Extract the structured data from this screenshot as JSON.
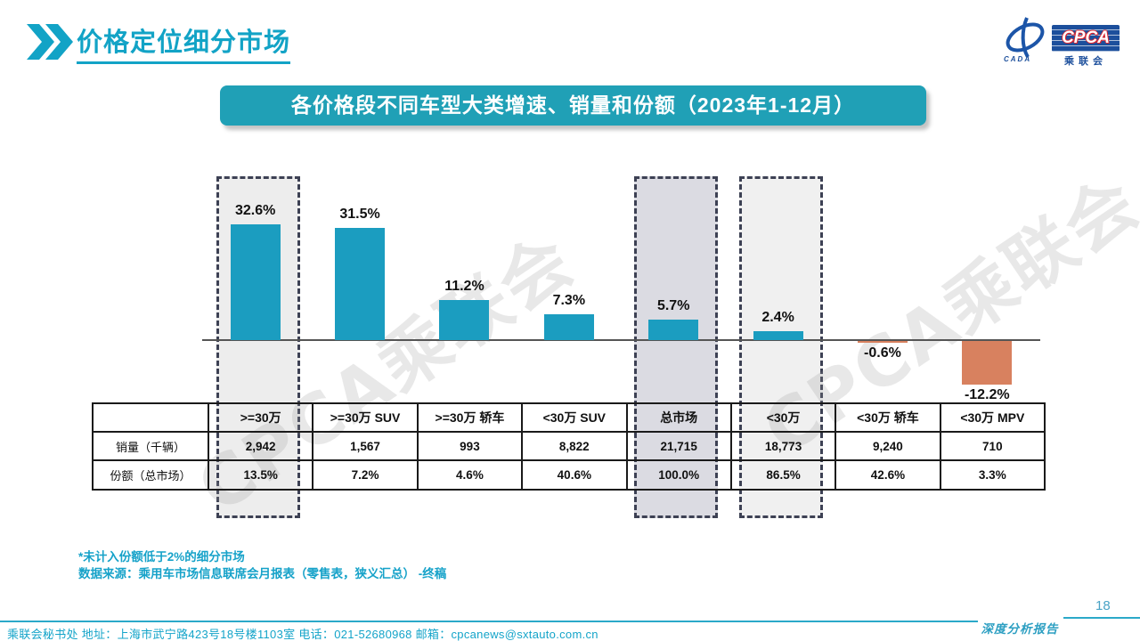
{
  "header": {
    "title": "价格定位细分市场"
  },
  "logo": {
    "org_en": "CPCA",
    "org_cn": "乘联会",
    "sub": "CADA"
  },
  "banner": {
    "title": "各价格段不同车型大类增速、销量和份额（2023年1-12月）"
  },
  "watermark": "CPCA乘联会",
  "chart_data": {
    "type": "bar",
    "title": "各价格段不同车型大类增速、销量和份额（2023年1-12月）",
    "categories": [
      ">=30万",
      ">=30万 SUV",
      ">=30万 轿车",
      "<30万 SUV",
      "总市场",
      "<30万",
      "<30万 轿车",
      "<30万 MPV"
    ],
    "values": [
      32.6,
      31.5,
      11.2,
      7.3,
      5.7,
      2.4,
      -0.6,
      -12.2
    ],
    "value_labels": [
      "32.6%",
      "31.5%",
      "11.2%",
      "7.3%",
      "5.7%",
      "2.4%",
      "-0.6%",
      "-12.2%"
    ],
    "unit": "%",
    "ylim": [
      -15,
      36
    ],
    "grid": false,
    "legend": false,
    "bar_color_positive": "#1b9dc0",
    "bar_color_negative": "#d8815f",
    "highlights": [
      {
        "category": ">=30万",
        "col": 0,
        "fill": "#ededed"
      },
      {
        "category": "总市场",
        "col": 4,
        "fill": "#dbdbe2"
      },
      {
        "category": "<30万",
        "col": 5,
        "fill": "#f0f0f0"
      }
    ],
    "table": {
      "corner": "",
      "row_headers": [
        "销量（千辆）",
        "份额（总市场）"
      ],
      "rows": [
        [
          "2,942",
          "1,567",
          "993",
          "8,822",
          "21,715",
          "18,773",
          "9,240",
          "710"
        ],
        [
          "13.5%",
          "7.2%",
          "4.6%",
          "40.6%",
          "100.0%",
          "86.5%",
          "42.6%",
          "3.3%"
        ]
      ]
    }
  },
  "notes": [
    "*未计入份额低于2%的细分市场",
    "数据来源：乘用车市场信息联席会月报表（零售表，狭义汇总） -终稿"
  ],
  "footer": {
    "text": "乘联会秘书处   地址：上海市武宁路423号18号楼1103室  电话：021-52680968   邮箱：cpcanews@sxtauto.com.cn",
    "report_label": "深度分析报告",
    "page_number": "18"
  }
}
